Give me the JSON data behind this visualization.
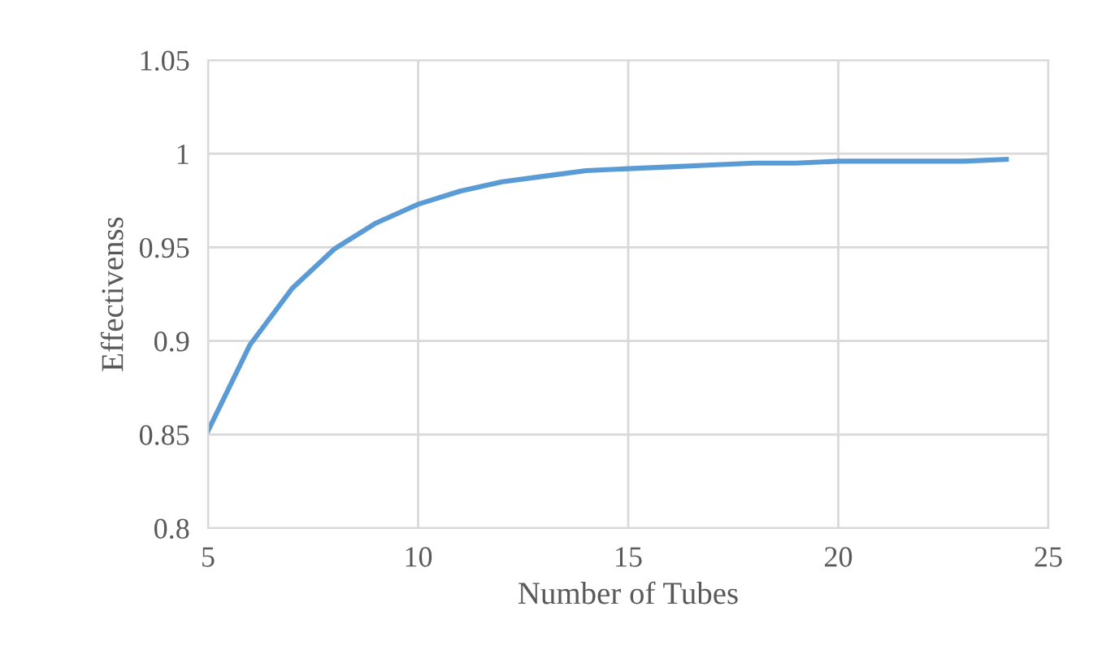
{
  "chart_data": {
    "type": "line",
    "xlabel": "Number of Tubes",
    "ylabel": "Effectivenss",
    "x": [
      5,
      6,
      7,
      8,
      9,
      10,
      11,
      12,
      13,
      14,
      15,
      16,
      17,
      18,
      19,
      20,
      21,
      22,
      23,
      24
    ],
    "series": [
      {
        "color": "#5b9bd5",
        "values": [
          0.852,
          0.898,
          0.928,
          0.949,
          0.963,
          0.973,
          0.98,
          0.985,
          0.988,
          0.991,
          0.992,
          0.993,
          0.994,
          0.995,
          0.995,
          0.996,
          0.996,
          0.996,
          0.996,
          0.997
        ]
      }
    ],
    "xlim": [
      5,
      25
    ],
    "xticks": [
      5,
      10,
      15,
      20,
      25
    ],
    "ylim": [
      0.8,
      1.05
    ],
    "yticks": [
      0.8,
      0.85,
      0.9,
      0.95,
      1,
      1.05
    ],
    "grid": true,
    "marker": "none",
    "line_style": "solid"
  }
}
